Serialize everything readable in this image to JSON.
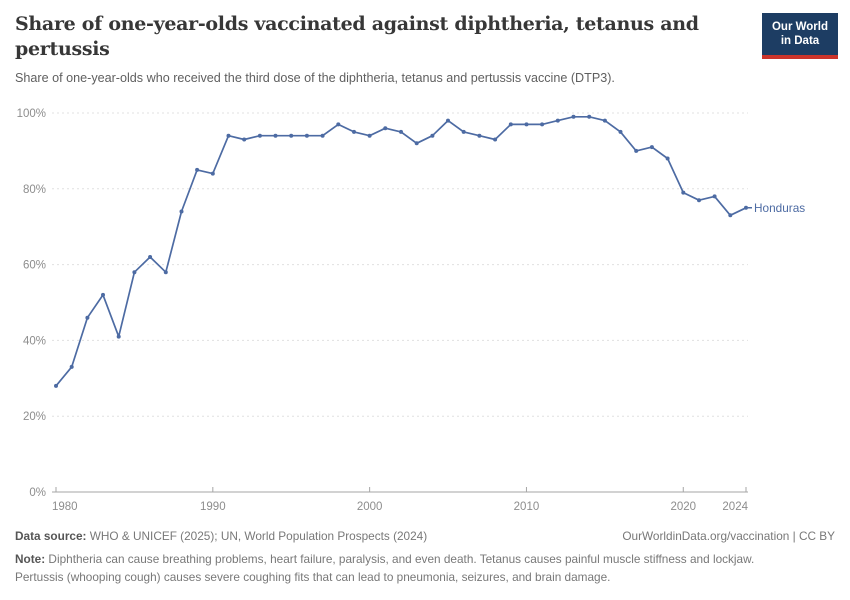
{
  "header": {
    "title": "Share of one-year-olds vaccinated against diphtheria, tetanus and pertussis",
    "subtitle": "Share of one-year-olds who received the third dose of the diphtheria, tetanus and pertussis vaccine (DTP3).",
    "logo": {
      "line1": "Our World",
      "line2": "in Data",
      "bg_color": "#1d3d63",
      "accent_color": "#cc342b"
    }
  },
  "chart_data": {
    "type": "line",
    "title": "Share of one-year-olds vaccinated against diphtheria, tetanus and pertussis",
    "entity_label": "Honduras",
    "unit": "%",
    "x": [
      1980,
      1981,
      1982,
      1983,
      1984,
      1985,
      1986,
      1987,
      1988,
      1989,
      1990,
      1991,
      1992,
      1993,
      1994,
      1995,
      1996,
      1997,
      1998,
      1999,
      2000,
      2001,
      2002,
      2003,
      2004,
      2005,
      2006,
      2007,
      2008,
      2009,
      2010,
      2011,
      2012,
      2013,
      2014,
      2015,
      2016,
      2017,
      2018,
      2019,
      2020,
      2021,
      2022,
      2023,
      2024
    ],
    "series": [
      {
        "name": "Honduras",
        "values": [
          28,
          33,
          46,
          52,
          41,
          58,
          62,
          58,
          74,
          85,
          84,
          94,
          93,
          94,
          94,
          94,
          94,
          94,
          97,
          95,
          94,
          96,
          95,
          92,
          94,
          98,
          95,
          94,
          93,
          97,
          97,
          97,
          98,
          99,
          99,
          98,
          95,
          90,
          91,
          88,
          79,
          77,
          78,
          73,
          75
        ]
      }
    ],
    "xlabel": "",
    "ylabel": "",
    "xlim": [
      1980,
      2024
    ],
    "ylim": [
      0,
      100
    ],
    "xticks": [
      1980,
      1990,
      2000,
      2010,
      2020,
      2024
    ],
    "yticks": [
      0,
      20,
      40,
      60,
      80,
      100
    ],
    "ytick_labels": [
      "0%",
      "20%",
      "40%",
      "60%",
      "80%",
      "100%"
    ],
    "grid": "horizontal-dashed",
    "legend_position": "end-of-line-label",
    "line_color": "#4d6ba3",
    "tick_label_color": "#8d8d8d",
    "grid_color": "#e0e0e0",
    "axis_color": "#a5a5a5"
  },
  "footer": {
    "datasource_label": "Data source:",
    "datasource_text": " WHO & UNICEF (2025); UN, World Population Prospects (2024)",
    "link_text": "OurWorldinData.org/vaccination | CC BY",
    "note_label": "Note:",
    "note_text": " Diphtheria can cause breathing problems, heart failure, paralysis, and even death. Tetanus causes painful muscle stiffness and lockjaw. Pertussis (whooping cough) causes severe coughing fits that can lead to pneumonia, seizures, and brain damage."
  }
}
